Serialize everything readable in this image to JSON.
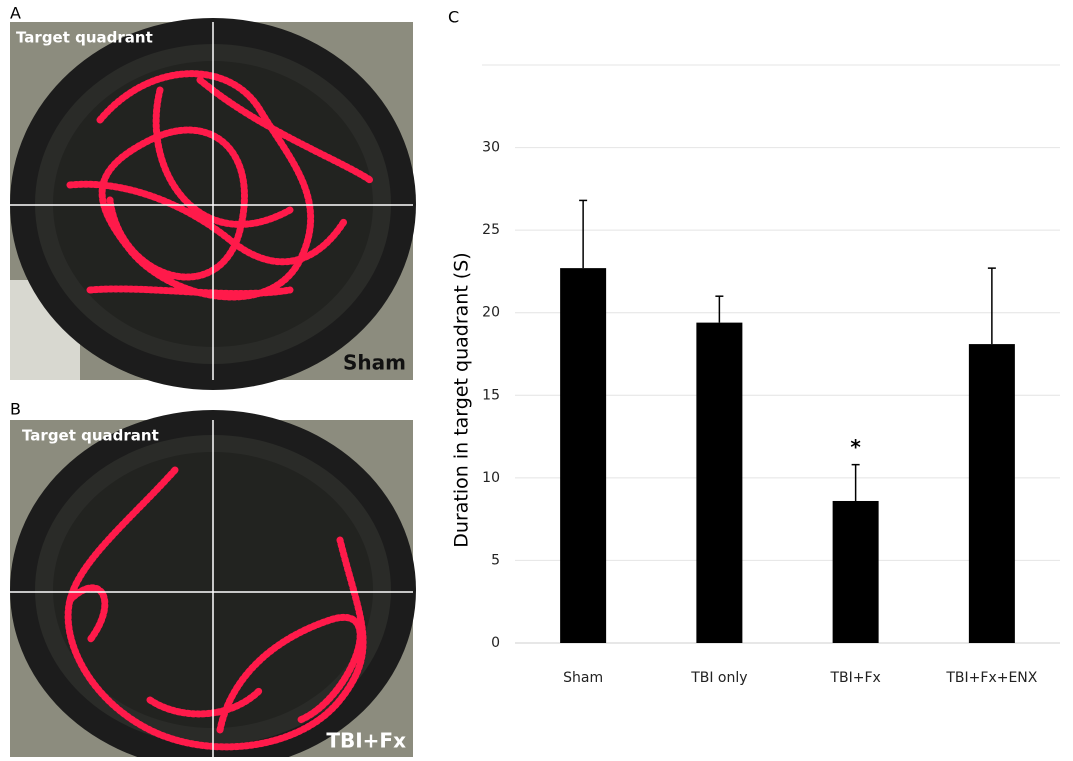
{
  "panels": [
    {
      "label": "A",
      "title": "Target quadrant",
      "group": "Sham"
    },
    {
      "label": "B",
      "title": "Target quadrant",
      "group": "TBI+Fx"
    }
  ],
  "chart_label": "C",
  "chart_data": {
    "type": "bar",
    "y_label": "Duration in target quadrant (S)",
    "categories": [
      "Sham",
      "TBI only",
      "TBI+Fx",
      "TBI+Fx+ENX"
    ],
    "values": [
      22.7,
      19.4,
      8.6,
      18.1
    ],
    "errors": [
      4.1,
      1.6,
      2.2,
      4.6
    ],
    "color": "#000000",
    "ylim": [
      0,
      35
    ],
    "yticks": [
      0,
      5,
      10,
      15,
      20,
      25,
      30
    ],
    "grid": true,
    "annotations": [
      {
        "text": "*",
        "category": 2
      }
    ]
  }
}
